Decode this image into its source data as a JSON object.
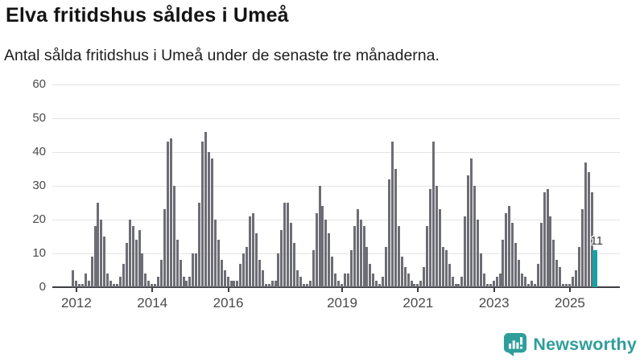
{
  "header": {
    "title": "Elva fritidshus såldes i Umeå",
    "subtitle": "Antal sålda fritidshus i Umeå under de senaste tre månaderna."
  },
  "chart_data": {
    "type": "bar",
    "title": "Elva fritidshus såldes i Umeå",
    "subtitle": "Antal sålda fritidshus i Umeå under de senaste tre månaderna.",
    "xlabel": "",
    "ylabel": "",
    "ylim": [
      0,
      60
    ],
    "yticks": [
      0,
      10,
      20,
      30,
      40,
      50,
      60
    ],
    "grid": "horizontal",
    "frequency": "monthly",
    "start_period": "2011-12",
    "end_period": "2025-09",
    "bar_color": "#6d6d75",
    "highlight_color": "#17a1a4",
    "values": [
      5,
      2,
      1,
      1,
      4,
      2,
      9,
      18,
      25,
      20,
      15,
      4,
      2,
      1,
      1,
      3,
      7,
      13,
      20,
      18,
      14,
      17,
      10,
      4,
      2,
      1,
      1,
      3,
      8,
      23,
      43,
      44,
      30,
      14,
      8,
      3,
      2,
      3,
      10,
      10,
      25,
      43,
      46,
      40,
      38,
      20,
      14,
      8,
      5,
      3,
      2,
      2,
      2,
      7,
      10,
      12,
      21,
      22,
      16,
      8,
      5,
      1,
      1,
      2,
      2,
      10,
      17,
      25,
      25,
      19,
      13,
      5,
      3,
      1,
      1,
      2,
      11,
      22,
      30,
      24,
      20,
      16,
      9,
      4,
      2,
      1,
      4,
      4,
      11,
      18,
      23,
      20,
      18,
      12,
      7,
      4,
      2,
      1,
      3,
      12,
      32,
      43,
      35,
      18,
      9,
      6,
      4,
      2,
      1,
      1,
      2,
      6,
      18,
      29,
      43,
      30,
      23,
      12,
      11,
      7,
      3,
      1,
      1,
      3,
      21,
      33,
      38,
      30,
      20,
      10,
      4,
      1,
      1,
      2,
      3,
      4,
      14,
      22,
      24,
      19,
      13,
      8,
      4,
      3,
      1,
      2,
      1,
      7,
      19,
      28,
      29,
      21,
      14,
      8,
      6,
      1,
      1,
      1,
      3,
      5,
      12,
      23,
      37,
      34,
      28,
      11
    ],
    "year_ticks": [
      {
        "label": "2012",
        "index": 1
      },
      {
        "label": "2014",
        "index": 25
      },
      {
        "label": "2016",
        "index": 49
      },
      {
        "label": "2019",
        "index": 85
      },
      {
        "label": "2021",
        "index": 109
      },
      {
        "label": "2023",
        "index": 133
      },
      {
        "label": "2025",
        "index": 157
      }
    ],
    "highlight_last_bar": true,
    "last_value_annotation": "11",
    "legend": null
  },
  "footer": {
    "brand": "Newsworthy",
    "brand_color": "#2f9e9b"
  }
}
